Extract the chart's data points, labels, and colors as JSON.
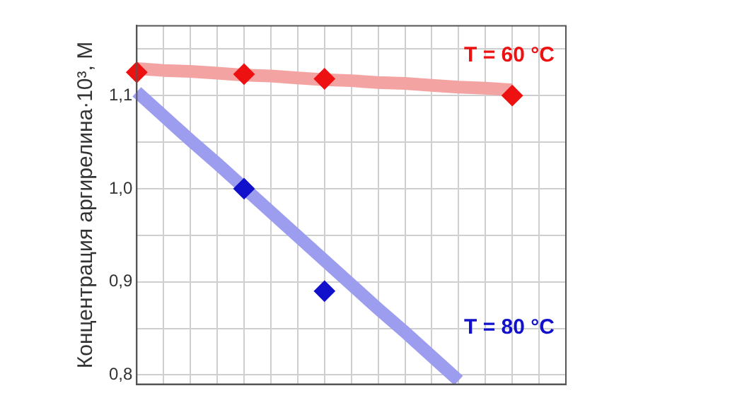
{
  "chart_data": {
    "type": "scatter",
    "ylabel": "Концентрация аргирелина·10³, М",
    "categories": [
      null,
      null,
      null,
      null,
      null,
      null,
      null,
      null,
      null,
      null,
      null,
      null,
      null,
      null,
      null,
      null,
      null
    ],
    "ylim": [
      0.79,
      1.175
    ],
    "yticks": [
      {
        "value": 0.8,
        "label": "0,8"
      },
      {
        "value": 0.85,
        "label": null
      },
      {
        "value": 0.9,
        "label": "0,9"
      },
      {
        "value": 0.95,
        "label": null
      },
      {
        "value": 1.0,
        "label": "1,0"
      },
      {
        "value": 1.05,
        "label": null
      },
      {
        "value": 1.1,
        "label": "1,1"
      },
      {
        "value": 1.15,
        "label": null
      }
    ],
    "tick_labels": "y",
    "grid": true,
    "legend": false,
    "marker": "diamond",
    "series": [
      {
        "type": "line",
        "marker": "none",
        "color": "#f4a3a3",
        "values": [
          1.129,
          1.127,
          1.126,
          1.124,
          1.122,
          1.121,
          1.119,
          1.117,
          1.116,
          1.114,
          1.113,
          1.111,
          1.109,
          1.108,
          1.106,
          null,
          null
        ]
      },
      {
        "type": "line",
        "marker": "none",
        "color": "#9d9df0",
        "values": [
          1.104,
          1.078,
          1.052,
          1.027,
          1.001,
          0.975,
          0.949,
          0.923,
          0.897,
          0.871,
          0.846,
          0.82,
          0.794,
          null,
          null,
          null,
          null
        ]
      },
      {
        "name": "T = 60 °C",
        "color": "#ee1111",
        "values": [
          1.125,
          null,
          null,
          null,
          1.123,
          null,
          null,
          1.118,
          null,
          null,
          null,
          null,
          null,
          null,
          1.1,
          null,
          null
        ]
      },
      {
        "name": "T = 80 °C",
        "color": "#1111cc",
        "values": [
          null,
          null,
          null,
          null,
          1.0,
          null,
          null,
          0.89,
          null,
          null,
          null,
          null,
          null,
          null,
          null,
          null,
          null
        ]
      }
    ]
  }
}
